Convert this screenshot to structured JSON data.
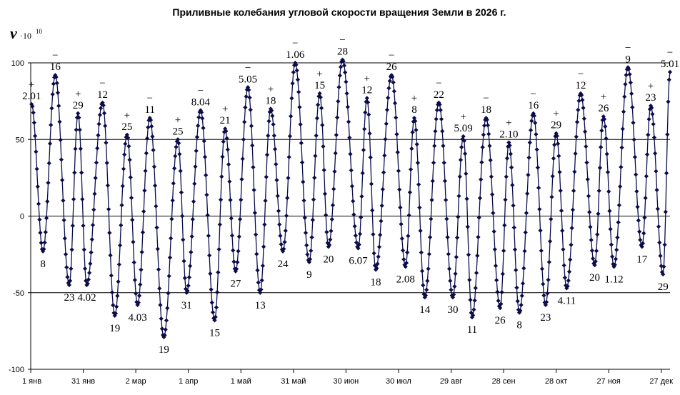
{
  "chart_data": {
    "type": "line",
    "title": "Приливные колебания угловой скорости  вращения Земли в 2026 г.",
    "ylabel": {
      "symbol": "v",
      "scale": "·10",
      "exponent": "10"
    },
    "xlim": [
      0,
      365
    ],
    "ylim": [
      -100,
      100
    ],
    "grid": {
      "horizontal": [
        -50,
        50,
        100
      ],
      "vertical": false
    },
    "y_ticks": [
      {
        "value": 100,
        "label": "100"
      },
      {
        "value": 50,
        "label": "50"
      },
      {
        "value": 0,
        "label": "0"
      },
      {
        "value": -50,
        "label": "-50"
      },
      {
        "value": -100,
        "label": "-100"
      }
    ],
    "x_ticks": [
      {
        "value": 0,
        "label": "1 янв"
      },
      {
        "value": 30,
        "label": "31 янв"
      },
      {
        "value": 60,
        "label": "2 мар"
      },
      {
        "value": 90,
        "label": "1 апр"
      },
      {
        "value": 120,
        "label": "1 май"
      },
      {
        "value": 150,
        "label": "31 май"
      },
      {
        "value": 180,
        "label": "30 июн"
      },
      {
        "value": 210,
        "label": "30 июл"
      },
      {
        "value": 240,
        "label": "29 авг"
      },
      {
        "value": 270,
        "label": "28 сен"
      },
      {
        "value": 300,
        "label": "28 окт"
      },
      {
        "value": 330,
        "label": "27 ноя"
      },
      {
        "value": 360,
        "label": "27 дек"
      }
    ],
    "extrema": [
      {
        "x": 0.5,
        "y": 73,
        "label": "2.01",
        "sign": "+"
      },
      {
        "x": 7,
        "y": -23,
        "label": "8"
      },
      {
        "x": 14,
        "y": 92,
        "label": "16",
        "sign": "−"
      },
      {
        "x": 22,
        "y": -45,
        "label": "23"
      },
      {
        "x": 27,
        "y": 67,
        "label": "29",
        "sign": "+"
      },
      {
        "x": 32,
        "y": -45,
        "label": "4.02"
      },
      {
        "x": 41,
        "y": 74,
        "label": "12",
        "sign": "−"
      },
      {
        "x": 48,
        "y": -65,
        "label": "19"
      },
      {
        "x": 55,
        "y": 53,
        "label": "25",
        "sign": "+"
      },
      {
        "x": 61,
        "y": -58,
        "label": "4.03"
      },
      {
        "x": 68,
        "y": 64,
        "label": "11",
        "sign": "−"
      },
      {
        "x": 76,
        "y": -79,
        "label": "19"
      },
      {
        "x": 84,
        "y": 50,
        "label": "25",
        "sign": "+"
      },
      {
        "x": 89,
        "y": -50,
        "label": "31"
      },
      {
        "x": 97,
        "y": 69,
        "label": "8.04",
        "sign": "−"
      },
      {
        "x": 105,
        "y": -68,
        "label": "15"
      },
      {
        "x": 111,
        "y": 57,
        "label": "21",
        "sign": "+"
      },
      {
        "x": 117,
        "y": -36,
        "label": "27"
      },
      {
        "x": 124,
        "y": 84,
        "label": "5.05",
        "sign": "−"
      },
      {
        "x": 131,
        "y": -50,
        "label": "13"
      },
      {
        "x": 137,
        "y": 70,
        "label": "18",
        "sign": "+"
      },
      {
        "x": 144,
        "y": -23,
        "label": "24"
      },
      {
        "x": 151,
        "y": 100,
        "label": "1.06",
        "sign": "−"
      },
      {
        "x": 159,
        "y": -30,
        "label": "9"
      },
      {
        "x": 165,
        "y": 80,
        "label": "15",
        "sign": "+"
      },
      {
        "x": 170,
        "y": -20,
        "label": "20"
      },
      {
        "x": 178,
        "y": 102,
        "label": "28",
        "sign": "−"
      },
      {
        "x": 187,
        "y": -21,
        "label": "6.07"
      },
      {
        "x": 192,
        "y": 77,
        "label": "12",
        "sign": "+"
      },
      {
        "x": 197,
        "y": -35,
        "label": "18"
      },
      {
        "x": 206,
        "y": 92,
        "label": "26",
        "sign": "−"
      },
      {
        "x": 214,
        "y": -33,
        "label": "2.08"
      },
      {
        "x": 219,
        "y": 64,
        "label": "8",
        "sign": "+"
      },
      {
        "x": 225,
        "y": -53,
        "label": "14"
      },
      {
        "x": 233,
        "y": 74,
        "label": "22",
        "sign": "−"
      },
      {
        "x": 241,
        "y": -53,
        "label": "30"
      },
      {
        "x": 247,
        "y": 52,
        "label": "5.09",
        "sign": "+"
      },
      {
        "x": 252,
        "y": -66,
        "label": "11"
      },
      {
        "x": 260,
        "y": 64,
        "label": "18",
        "sign": "−"
      },
      {
        "x": 268,
        "y": -60,
        "label": "26"
      },
      {
        "x": 273,
        "y": 48,
        "label": "2.10",
        "sign": "+"
      },
      {
        "x": 279,
        "y": -63,
        "label": "8"
      },
      {
        "x": 287,
        "y": 67,
        "label": "16",
        "sign": "−"
      },
      {
        "x": 294,
        "y": -58,
        "label": "23"
      },
      {
        "x": 300,
        "y": 54,
        "label": "29",
        "sign": "+"
      },
      {
        "x": 306,
        "y": -47,
        "label": "4.11"
      },
      {
        "x": 314,
        "y": 80,
        "label": "12",
        "sign": "−"
      },
      {
        "x": 322,
        "y": -32,
        "label": "20"
      },
      {
        "x": 327,
        "y": 65,
        "label": "26",
        "sign": "+"
      },
      {
        "x": 333,
        "y": -33,
        "label": "1.12"
      },
      {
        "x": 341,
        "y": 97,
        "label": "9",
        "sign": "−"
      },
      {
        "x": 349,
        "y": -20,
        "label": "17"
      },
      {
        "x": 354,
        "y": 72,
        "label": "23",
        "sign": "+"
      },
      {
        "x": 361,
        "y": -38,
        "label": "29"
      },
      {
        "x": 365,
        "y": 94,
        "label": "5.01",
        "sign": "−"
      }
    ]
  }
}
